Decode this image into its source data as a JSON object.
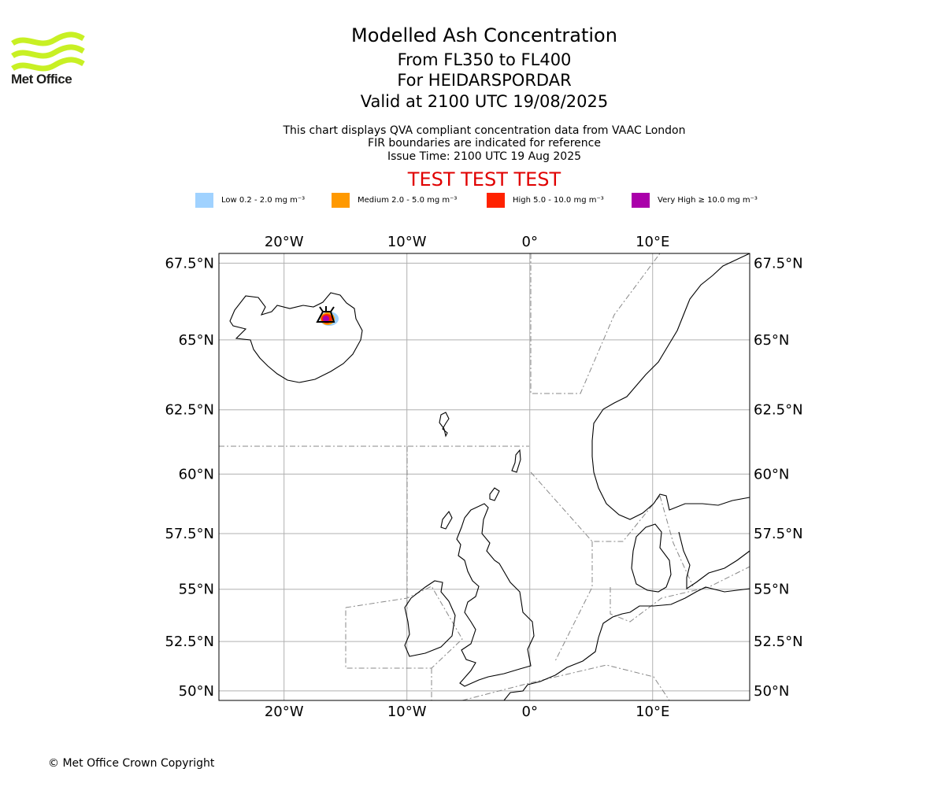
{
  "logo": {
    "text": "Met Office",
    "color": "#c8f024"
  },
  "header": {
    "title": "Modelled Ash Concentration",
    "levels": "From FL350 to FL400",
    "volcano": "For HEIDARSPORDAR",
    "valid": "Valid at 2100 UTC 19/08/2025",
    "description": "This chart displays QVA compliant concentration data from VAAC London",
    "fir_note": "FIR boundaries are indicated for reference",
    "issue_time": "Issue Time: 2100 UTC 19 Aug 2025",
    "test_banner": "TEST TEST TEST",
    "test_color": "#e00000"
  },
  "legend": [
    {
      "label": "Low 0.2 - 2.0 mg m⁻³",
      "color": "#a0d2ff"
    },
    {
      "label": "Medium 2.0 - 5.0 mg m⁻³",
      "color": "#ff9900"
    },
    {
      "label": "High 5.0 - 10.0 mg m⁻³",
      "color": "#ff2200"
    },
    {
      "label": "Very High  ≥  10.0 mg m⁻³",
      "color": "#aa00aa"
    }
  ],
  "map": {
    "lon_range": [
      -25.3,
      17.9
    ],
    "lat_range": [
      49.5,
      67.8
    ],
    "lon_ticks": [
      {
        "value": -20,
        "label": "20°W"
      },
      {
        "value": -10,
        "label": "10°W"
      },
      {
        "value": 0,
        "label": "0°"
      },
      {
        "value": 10,
        "label": "10°E"
      }
    ],
    "lat_ticks": [
      {
        "value": 67.5,
        "label": "67.5°N"
      },
      {
        "value": 65,
        "label": "65°N"
      },
      {
        "value": 62.5,
        "label": "62.5°N"
      },
      {
        "value": 60,
        "label": "60°N"
      },
      {
        "value": 57.5,
        "label": "57.5°N"
      },
      {
        "value": 55,
        "label": "55°N"
      },
      {
        "value": 52.5,
        "label": "52.5°N"
      },
      {
        "value": 50,
        "label": "50°N"
      }
    ],
    "volcano_location": {
      "lon": -16.5,
      "lat": 65.7
    }
  },
  "footer": {
    "copyright": "© Met Office Crown Copyright"
  }
}
